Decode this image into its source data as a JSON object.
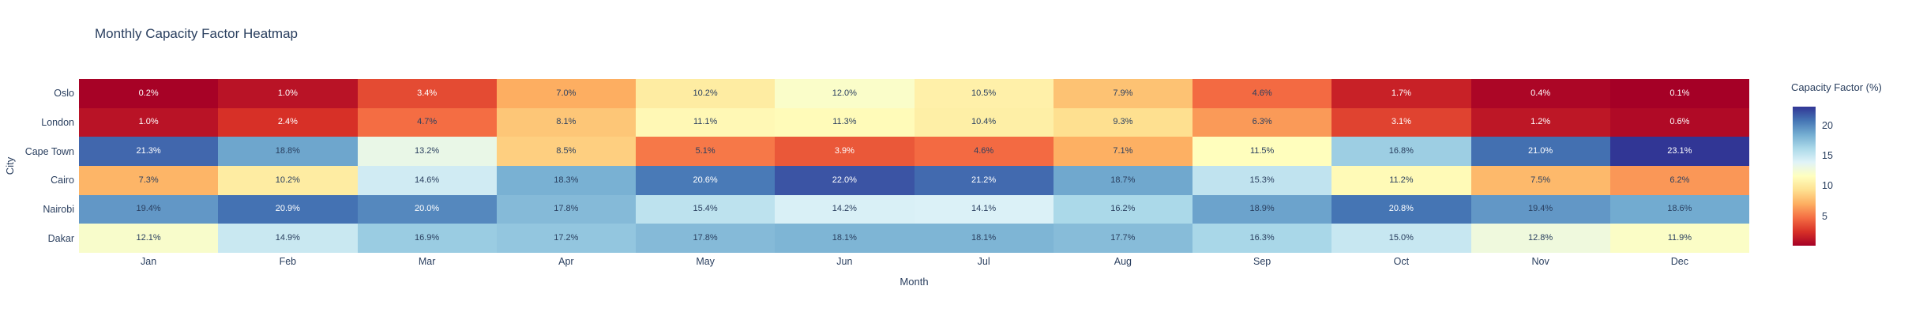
{
  "chart_data": {
    "type": "heatmap",
    "title": "Monthly Capacity Factor Heatmap",
    "xlabel": "Month",
    "ylabel": "City",
    "x_categories": [
      "Jan",
      "Feb",
      "Mar",
      "Apr",
      "May",
      "Jun",
      "Jul",
      "Aug",
      "Sep",
      "Oct",
      "Nov",
      "Dec"
    ],
    "y_categories": [
      "Oslo",
      "London",
      "Cape Town",
      "Cairo",
      "Nairobi",
      "Dakar"
    ],
    "value_suffix": "%",
    "series": [
      {
        "name": "Oslo",
        "values": [
          0.2,
          1.0,
          3.4,
          7.0,
          10.2,
          12.0,
          10.5,
          7.9,
          4.6,
          1.7,
          0.4,
          0.1
        ]
      },
      {
        "name": "London",
        "values": [
          1.0,
          2.4,
          4.7,
          8.1,
          11.1,
          11.3,
          10.4,
          9.3,
          6.3,
          3.1,
          1.2,
          0.6
        ]
      },
      {
        "name": "Cape Town",
        "values": [
          21.3,
          18.8,
          13.2,
          8.5,
          5.1,
          3.9,
          4.6,
          7.1,
          11.5,
          16.8,
          21.0,
          23.1
        ]
      },
      {
        "name": "Cairo",
        "values": [
          7.3,
          10.2,
          14.6,
          18.3,
          20.6,
          22.0,
          21.2,
          18.7,
          15.3,
          11.2,
          7.5,
          6.2
        ]
      },
      {
        "name": "Nairobi",
        "values": [
          19.4,
          20.9,
          20.0,
          17.8,
          15.4,
          14.2,
          14.1,
          16.2,
          18.9,
          20.8,
          19.4,
          18.6
        ]
      },
      {
        "name": "Dakar",
        "values": [
          12.1,
          14.9,
          16.9,
          17.2,
          17.8,
          18.1,
          18.1,
          17.7,
          16.3,
          15.0,
          12.8,
          11.9
        ]
      }
    ],
    "colorscale": {
      "name": "RdYlBu-reversed-low-red-high-blue",
      "title": "Capacity Factor (%)",
      "vmin": 0.1,
      "vmax": 23.1,
      "ticks": [
        20,
        15,
        10,
        5
      ],
      "stops": [
        "#a50026",
        "#d73027",
        "#f46d43",
        "#fdae61",
        "#fee090",
        "#ffffbf",
        "#e0f3f8",
        "#abd9e9",
        "#74add1",
        "#4575b4",
        "#313695"
      ]
    },
    "label_color_dark": "#2a3f5f",
    "label_color_light": "#ffffff",
    "grid": false,
    "legend_position": "right-colorbar"
  }
}
